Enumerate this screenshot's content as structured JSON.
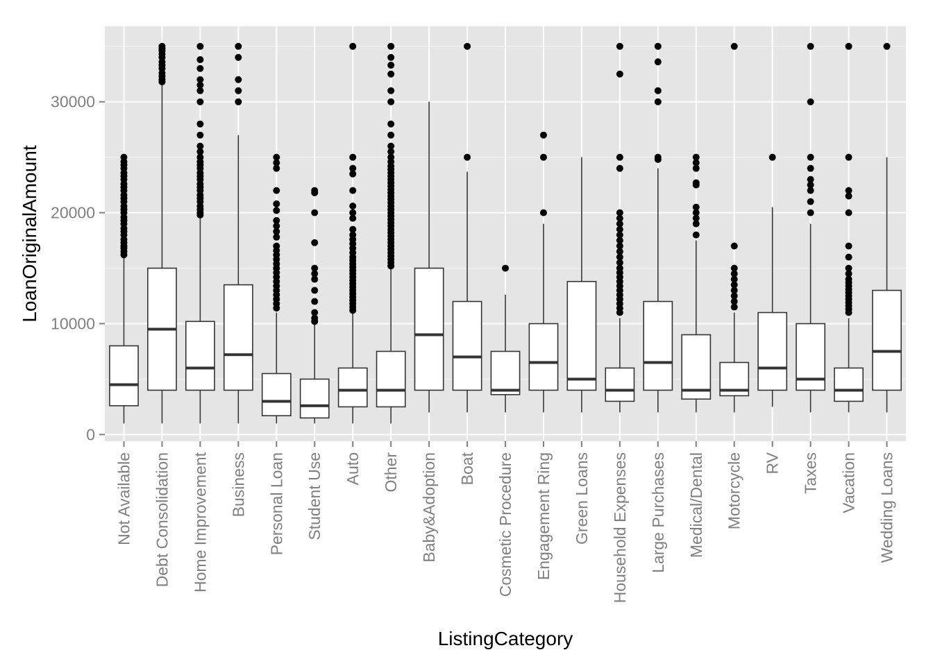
{
  "chart_data": {
    "type": "boxplot",
    "xlabel": "ListingCategory",
    "ylabel": "LoanOriginalAmount",
    "ylim": [
      -600,
      36800
    ],
    "y_ticks": [
      0,
      10000,
      20000,
      30000
    ],
    "grid": true,
    "colors": {
      "panel_bg": "#e5e5e5",
      "grid_major": "#ffffff",
      "grid_minor": "#f2f2f2",
      "box_fill": "#ffffff",
      "box_stroke": "#333333",
      "outlier": "#000000",
      "tick_label": "#7f7f7f",
      "axis_title": "#000000"
    },
    "categories": [
      {
        "label": "Not Available",
        "whisker_low": 1000,
        "q1": 2600,
        "median": 4500,
        "q3": 8000,
        "whisker_high": 16000,
        "outliers": [
          16200,
          16500,
          16800,
          17000,
          17300,
          17600,
          18000,
          18300,
          18600,
          19000,
          19300,
          19600,
          20000,
          20300,
          20600,
          21000,
          21300,
          21600,
          22000,
          22300,
          22600,
          23000,
          23300,
          23600,
          24000,
          24300,
          24600,
          25000
        ]
      },
      {
        "label": "Debt Consolidation",
        "whisker_low": 1000,
        "q1": 4000,
        "median": 9500,
        "q3": 15000,
        "whisker_high": 31500,
        "outliers": [
          31800,
          32000,
          32300,
          32600,
          33000,
          33300,
          33600,
          34000,
          34300,
          34600,
          34800,
          35000
        ]
      },
      {
        "label": "Home Improvement",
        "whisker_low": 1000,
        "q1": 4000,
        "median": 6000,
        "q3": 10200,
        "whisker_high": 19500,
        "outliers": [
          19800,
          20000,
          20300,
          20600,
          21000,
          21300,
          21600,
          22000,
          22300,
          22600,
          23000,
          23300,
          23600,
          24000,
          24300,
          24600,
          25000,
          25500,
          26000,
          27000,
          28000,
          30000,
          31000,
          31500,
          32000,
          33000,
          33800,
          35000
        ]
      },
      {
        "label": "Business",
        "whisker_low": 1000,
        "q1": 4000,
        "median": 7200,
        "q3": 13500,
        "whisker_high": 27000,
        "outliers": [
          30000,
          31000,
          32000,
          34000,
          35000
        ]
      },
      {
        "label": "Personal Loan",
        "whisker_low": 1000,
        "q1": 1700,
        "median": 3000,
        "q3": 5500,
        "whisker_high": 11000,
        "outliers": [
          11400,
          11800,
          12200,
          12600,
          13000,
          13400,
          13800,
          14200,
          14600,
          15000,
          15400,
          15800,
          16200,
          16600,
          17000,
          17800,
          18300,
          18800,
          19300,
          20200,
          20800,
          22000,
          24000,
          24500,
          25000
        ]
      },
      {
        "label": "Student Use",
        "whisker_low": 1000,
        "q1": 1500,
        "median": 2600,
        "q3": 5000,
        "whisker_high": 10000,
        "outliers": [
          10200,
          10500,
          11000,
          12000,
          13000,
          14000,
          14500,
          15000,
          17300,
          20000,
          21800,
          22000
        ]
      },
      {
        "label": "Auto",
        "whisker_low": 1000,
        "q1": 2500,
        "median": 4000,
        "q3": 6000,
        "whisker_high": 11000,
        "outliers": [
          11200,
          11500,
          11800,
          12100,
          12400,
          12700,
          13000,
          13300,
          13600,
          13900,
          14200,
          14500,
          14800,
          15100,
          15400,
          15700,
          16000,
          16400,
          16800,
          17200,
          17600,
          18000,
          18500,
          19500,
          20000,
          20600,
          22000,
          23500,
          24000,
          25000,
          35000
        ]
      },
      {
        "label": "Other",
        "whisker_low": 1000,
        "q1": 2500,
        "median": 4000,
        "q3": 7500,
        "whisker_high": 15000,
        "outliers": [
          15200,
          15500,
          15800,
          16100,
          16400,
          16700,
          17000,
          17300,
          17600,
          17900,
          18200,
          18500,
          18800,
          19100,
          19400,
          19700,
          20000,
          20300,
          20600,
          20900,
          21200,
          21500,
          21800,
          22100,
          22400,
          22700,
          23000,
          23300,
          23600,
          23900,
          24200,
          24600,
          25000,
          25500,
          26000,
          27000,
          28000,
          30000,
          31000,
          32500,
          33300,
          34000,
          35000
        ]
      },
      {
        "label": "Baby&Adoption",
        "whisker_low": 2000,
        "q1": 4000,
        "median": 9000,
        "q3": 15000,
        "whisker_high": 30000,
        "outliers": []
      },
      {
        "label": "Boat",
        "whisker_low": 2000,
        "q1": 4000,
        "median": 7000,
        "q3": 12000,
        "whisker_high": 23700,
        "outliers": [
          25000,
          35000
        ]
      },
      {
        "label": "Cosmetic Procedure",
        "whisker_low": 2000,
        "q1": 3600,
        "median": 4000,
        "q3": 7500,
        "whisker_high": 12600,
        "outliers": [
          15000
        ]
      },
      {
        "label": "Engagement Ring",
        "whisker_low": 2000,
        "q1": 4000,
        "median": 6500,
        "q3": 10000,
        "whisker_high": 19000,
        "outliers": [
          20000,
          25000,
          27000
        ]
      },
      {
        "label": "Green Loans",
        "whisker_low": 2000,
        "q1": 4000,
        "median": 5000,
        "q3": 13800,
        "whisker_high": 25000,
        "outliers": []
      },
      {
        "label": "Household Expenses",
        "whisker_low": 2000,
        "q1": 3000,
        "median": 4000,
        "q3": 6000,
        "whisker_high": 10500,
        "outliers": [
          11000,
          11400,
          11800,
          12200,
          12600,
          13000,
          13400,
          13800,
          14200,
          14600,
          15000,
          15500,
          16000,
          16500,
          17000,
          17500,
          18000,
          18500,
          19000,
          19500,
          20000,
          24000,
          25000,
          32500,
          35000
        ]
      },
      {
        "label": "Large Purchases",
        "whisker_low": 2000,
        "q1": 4000,
        "median": 6500,
        "q3": 12000,
        "whisker_high": 24000,
        "outliers": [
          24800,
          25000,
          30000,
          31000,
          33600,
          35000
        ]
      },
      {
        "label": "Medical/Dental",
        "whisker_low": 2000,
        "q1": 3200,
        "median": 4000,
        "q3": 9000,
        "whisker_high": 17500,
        "outliers": [
          18000,
          19000,
          19500,
          20000,
          20500,
          22500,
          22700,
          24000,
          24500,
          25000
        ]
      },
      {
        "label": "Motorcycle",
        "whisker_low": 2000,
        "q1": 3500,
        "median": 4000,
        "q3": 6500,
        "whisker_high": 11000,
        "outliers": [
          11500,
          12000,
          12500,
          13000,
          13500,
          14000,
          14500,
          15000,
          17000,
          35000
        ]
      },
      {
        "label": "RV",
        "whisker_low": 2500,
        "q1": 4000,
        "median": 6000,
        "q3": 11000,
        "whisker_high": 20500,
        "outliers": [
          25000
        ]
      },
      {
        "label": "Taxes",
        "whisker_low": 2000,
        "q1": 4000,
        "median": 5000,
        "q3": 10000,
        "whisker_high": 19000,
        "outliers": [
          20000,
          21000,
          22000,
          22500,
          23000,
          24000,
          25000,
          30000,
          35000
        ]
      },
      {
        "label": "Vacation",
        "whisker_low": 2000,
        "q1": 3000,
        "median": 4000,
        "q3": 6000,
        "whisker_high": 10500,
        "outliers": [
          11000,
          11300,
          11600,
          11900,
          12200,
          12500,
          12800,
          13100,
          13400,
          13700,
          14000,
          14500,
          15000,
          16000,
          17000,
          20000,
          21500,
          22000,
          25000,
          35000
        ]
      },
      {
        "label": "Wedding Loans",
        "whisker_low": 2000,
        "q1": 4000,
        "median": 7500,
        "q3": 13000,
        "whisker_high": 25000,
        "outliers": [
          35000
        ]
      }
    ]
  }
}
